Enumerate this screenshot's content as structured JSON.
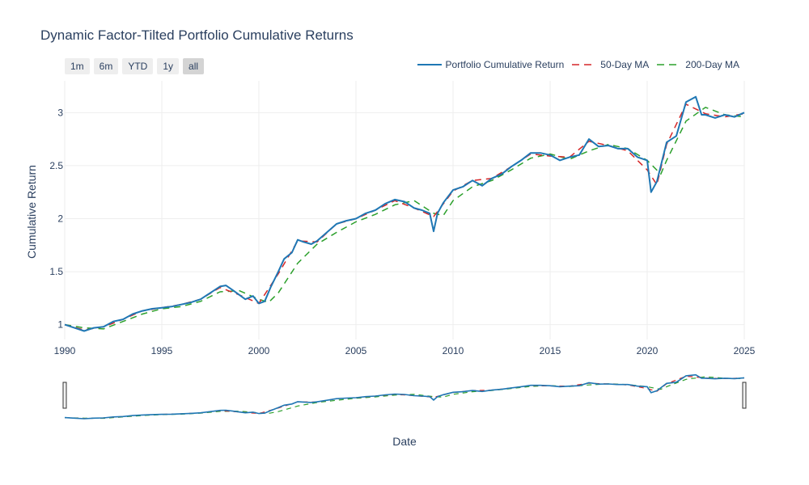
{
  "colors": {
    "portfolio": "#1f77b4",
    "ma50": "#d62728",
    "ma200": "#2ca02c",
    "grid": "#eeeeee",
    "text": "#2a3f5f"
  },
  "range_buttons": [
    {
      "label": "1m",
      "active": false
    },
    {
      "label": "6m",
      "active": false
    },
    {
      "label": "YTD",
      "active": false
    },
    {
      "label": "1y",
      "active": false
    },
    {
      "label": "all",
      "active": true
    }
  ],
  "chart_data": {
    "type": "line",
    "title": "Dynamic Factor-Tilted Portfolio Cumulative Returns",
    "xlabel": "Date",
    "ylabel": "Cumulative Return",
    "xlim": [
      1990,
      2025
    ],
    "ylim": [
      0.86,
      3.3
    ],
    "x_ticks": [
      1990,
      1995,
      2000,
      2005,
      2010,
      2015,
      2020,
      2025
    ],
    "y_ticks": [
      1,
      1.5,
      2,
      2.5,
      3
    ],
    "y_tick_labels": [
      "1",
      "1.5",
      "2",
      "2.5",
      "3"
    ],
    "grid": true,
    "legend_position": "top-right",
    "range_slider": true,
    "series": [
      {
        "name": "Portfolio Cumulative Return",
        "style": "solid",
        "x": [
          1990,
          1990.5,
          1991,
          1991.5,
          1992,
          1992.5,
          1993,
          1993.5,
          1994,
          1994.5,
          1995,
          1995.5,
          1996,
          1996.5,
          1997,
          1997.5,
          1998,
          1998.3,
          1998.7,
          1999,
          1999.3,
          1999.7,
          2000,
          2000.3,
          2000.6,
          2001,
          2001.3,
          2001.7,
          2002,
          2002.3,
          2002.7,
          2003,
          2003.5,
          2004,
          2004.5,
          2005,
          2005.5,
          2006,
          2006.5,
          2007,
          2007.5,
          2008,
          2008.4,
          2008.8,
          2009,
          2009.2,
          2009.5,
          2010,
          2010.5,
          2011,
          2011.5,
          2012,
          2012.5,
          2013,
          2013.5,
          2014,
          2014.5,
          2015,
          2015.5,
          2016,
          2016.5,
          2017,
          2017.5,
          2018,
          2018.5,
          2019,
          2019.5,
          2020,
          2020.2,
          2020.5,
          2021,
          2021.5,
          2022,
          2022.5,
          2022.8,
          2023,
          2023.5,
          2024,
          2024.5,
          2025
        ],
        "values": [
          1.0,
          0.97,
          0.94,
          0.97,
          0.98,
          1.03,
          1.05,
          1.1,
          1.13,
          1.15,
          1.16,
          1.17,
          1.19,
          1.21,
          1.24,
          1.3,
          1.36,
          1.37,
          1.32,
          1.28,
          1.24,
          1.27,
          1.2,
          1.22,
          1.35,
          1.5,
          1.62,
          1.68,
          1.8,
          1.78,
          1.76,
          1.79,
          1.87,
          1.95,
          1.98,
          2.0,
          2.05,
          2.08,
          2.14,
          2.18,
          2.16,
          2.1,
          2.08,
          2.05,
          1.88,
          2.05,
          2.15,
          2.27,
          2.3,
          2.36,
          2.31,
          2.38,
          2.42,
          2.49,
          2.55,
          2.62,
          2.62,
          2.6,
          2.55,
          2.58,
          2.6,
          2.75,
          2.68,
          2.69,
          2.66,
          2.66,
          2.58,
          2.55,
          2.25,
          2.35,
          2.72,
          2.78,
          3.1,
          3.15,
          2.98,
          2.98,
          2.95,
          2.98,
          2.96,
          3.0
        ]
      },
      {
        "name": "50-Day MA",
        "style": "dash",
        "x": [
          1990,
          1991,
          1992,
          1993,
          1994,
          1995,
          1996,
          1997,
          1998,
          1999,
          2000,
          2001,
          2002,
          2003,
          2004,
          2005,
          2006,
          2007,
          2008,
          2009,
          2010,
          2011,
          2012,
          2013,
          2014,
          2015,
          2016,
          2017,
          2018,
          2019,
          2020,
          2020.5,
          2021,
          2022,
          2023,
          2024,
          2025
        ],
        "values": [
          1.0,
          0.95,
          0.98,
          1.05,
          1.13,
          1.16,
          1.19,
          1.24,
          1.35,
          1.28,
          1.2,
          1.48,
          1.79,
          1.78,
          1.95,
          2.0,
          2.08,
          2.17,
          2.1,
          2.02,
          2.26,
          2.36,
          2.38,
          2.49,
          2.61,
          2.59,
          2.58,
          2.73,
          2.69,
          2.64,
          2.46,
          2.32,
          2.7,
          3.08,
          2.99,
          2.96,
          2.99
        ]
      },
      {
        "name": "200-Day MA",
        "style": "dash",
        "x": [
          1990,
          1991,
          1992,
          1993,
          1994,
          1995,
          1996,
          1997,
          1998,
          1999,
          2000,
          2000.5,
          2001,
          2002,
          2003,
          2004,
          2005,
          2006,
          2007,
          2008,
          2009,
          2009.5,
          2010,
          2011,
          2012,
          2013,
          2014,
          2015,
          2016,
          2017,
          2018,
          2019,
          2020,
          2020.7,
          2021,
          2022,
          2023,
          2024,
          2025
        ],
        "values": [
          1.0,
          0.97,
          0.96,
          1.03,
          1.1,
          1.15,
          1.17,
          1.22,
          1.31,
          1.32,
          1.24,
          1.21,
          1.3,
          1.58,
          1.76,
          1.87,
          1.97,
          2.04,
          2.13,
          2.17,
          2.05,
          2.03,
          2.17,
          2.3,
          2.36,
          2.46,
          2.57,
          2.61,
          2.56,
          2.64,
          2.7,
          2.66,
          2.55,
          2.42,
          2.55,
          2.92,
          3.05,
          2.98,
          2.96
        ]
      }
    ]
  }
}
